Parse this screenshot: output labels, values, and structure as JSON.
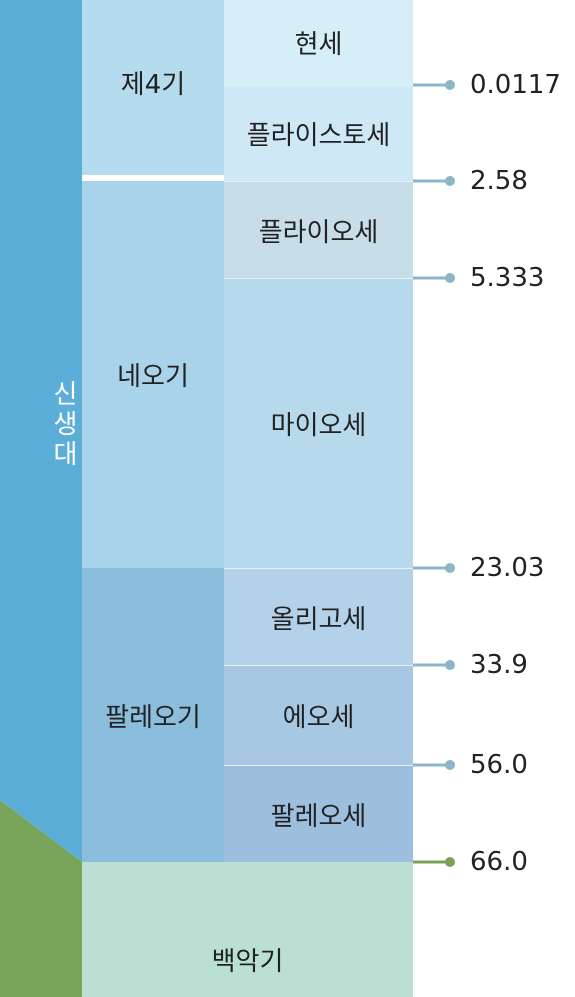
{
  "era": {
    "label": "신생대"
  },
  "periods": [
    {
      "label": "제4기"
    },
    {
      "label": "네오기"
    },
    {
      "label": "팔레오기"
    }
  ],
  "epochs": [
    {
      "label": "현세"
    },
    {
      "label": "플라이스토세"
    },
    {
      "label": "플라이오세"
    },
    {
      "label": "마이오세"
    },
    {
      "label": "올리고세"
    },
    {
      "label": "에오세"
    },
    {
      "label": "팔레오세"
    }
  ],
  "boundaries": [
    {
      "label": "0.0117"
    },
    {
      "label": "2.58"
    },
    {
      "label": "5.333"
    },
    {
      "label": "23.03"
    },
    {
      "label": "33.9"
    },
    {
      "label": "56.0"
    },
    {
      "label": "66.0"
    }
  ],
  "cretaceous": {
    "label": "백악기"
  }
}
